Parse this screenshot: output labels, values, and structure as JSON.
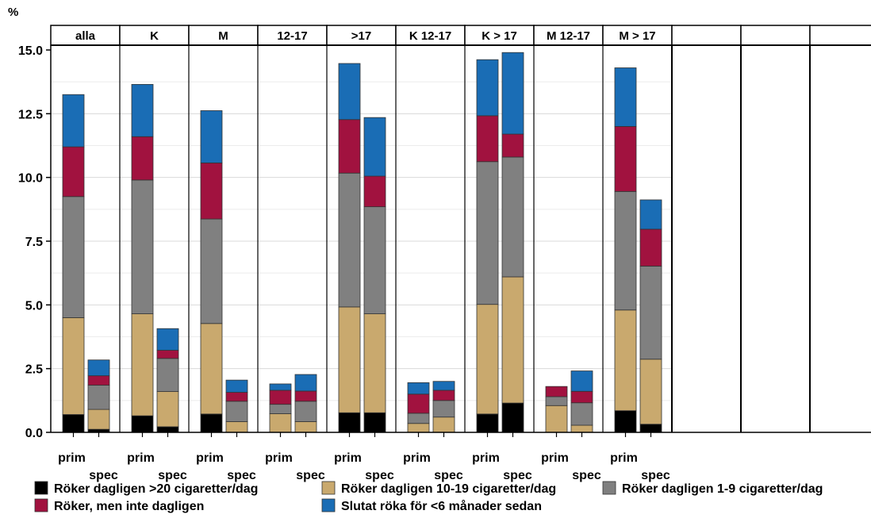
{
  "chart_data": {
    "type": "bar",
    "stacked": true,
    "ylabel": "%",
    "ylim": [
      0,
      15
    ],
    "yticks": [
      "0.0",
      "2.5",
      "5.0",
      "7.5",
      "10.0",
      "12.5",
      "15.0"
    ],
    "grid": true,
    "panels": [
      "alla",
      "K",
      "M",
      "12-17",
      ">17",
      "K 12-17",
      "K > 17",
      "M 12-17",
      "M > 17",
      "",
      "",
      ""
    ],
    "bar_labels": [
      "prim",
      "spec"
    ],
    "legend_placement": "bottom",
    "series": [
      {
        "name": "Röker dagligen >20 cigaretter/dag",
        "color": "#000000",
        "values": [
          [
            0.7,
            0.12
          ],
          [
            0.65,
            0.22
          ],
          [
            0.72,
            0.0
          ],
          [
            0.0,
            0.0
          ],
          [
            0.77,
            0.77
          ],
          [
            0.0,
            0.0
          ],
          [
            0.72,
            1.15
          ],
          [
            0.0,
            0.0
          ],
          [
            0.85,
            0.32
          ]
        ]
      },
      {
        "name": "Röker dagligen 10-19 cigaretter/dag",
        "color": "#c9a96e",
        "values": [
          [
            3.8,
            0.78
          ],
          [
            4.0,
            1.38
          ],
          [
            3.55,
            0.42
          ],
          [
            0.73,
            0.42
          ],
          [
            4.15,
            3.88
          ],
          [
            0.35,
            0.6
          ],
          [
            4.3,
            4.95
          ],
          [
            1.05,
            0.28
          ],
          [
            3.95,
            2.55
          ]
        ]
      },
      {
        "name": "Röker dagligen 1-9 cigaretter/dag",
        "color": "#808080",
        "values": [
          [
            4.75,
            0.95
          ],
          [
            5.25,
            1.3
          ],
          [
            4.1,
            0.8
          ],
          [
            0.37,
            0.8
          ],
          [
            5.25,
            4.2
          ],
          [
            0.4,
            0.65
          ],
          [
            5.6,
            4.7
          ],
          [
            0.35,
            0.88
          ],
          [
            4.65,
            3.65
          ]
        ]
      },
      {
        "name": "Röker, men inte dagligen",
        "color": "#a1123f",
        "values": [
          [
            1.95,
            0.37
          ],
          [
            1.7,
            0.32
          ],
          [
            2.2,
            0.35
          ],
          [
            0.55,
            0.4
          ],
          [
            2.1,
            1.2
          ],
          [
            0.75,
            0.4
          ],
          [
            1.8,
            0.9
          ],
          [
            0.4,
            0.45
          ],
          [
            2.55,
            1.45
          ]
        ]
      },
      {
        "name": "Slutat röka för <6 månader sedan",
        "color": "#1a6db5",
        "values": [
          [
            2.05,
            0.62
          ],
          [
            2.05,
            0.85
          ],
          [
            2.05,
            0.48
          ],
          [
            0.25,
            0.65
          ],
          [
            2.2,
            2.3
          ],
          [
            0.45,
            0.35
          ],
          [
            2.2,
            3.2
          ],
          [
            0.0,
            0.8
          ],
          [
            2.3,
            1.15
          ]
        ]
      }
    ]
  }
}
